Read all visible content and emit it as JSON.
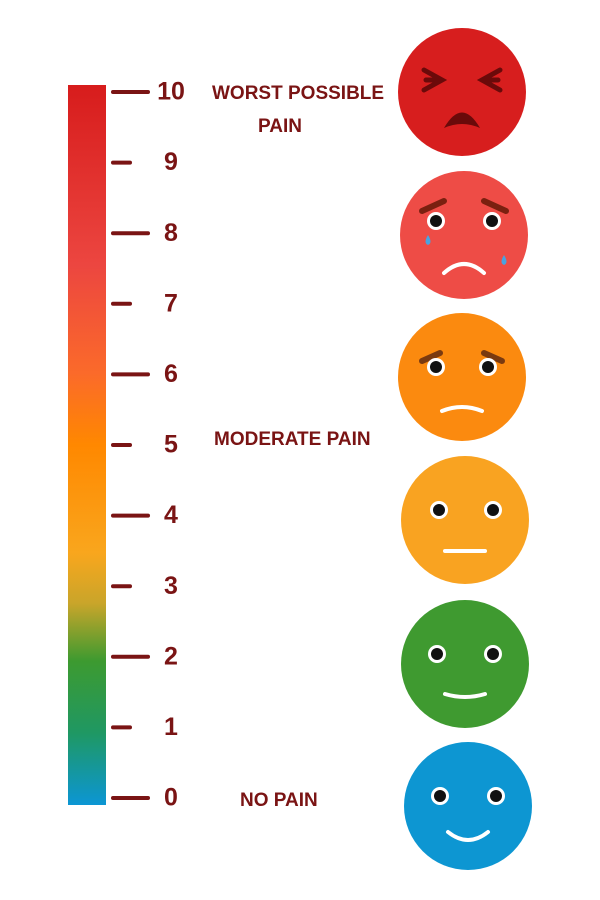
{
  "scale": {
    "ticks": [
      10,
      9,
      8,
      7,
      6,
      5,
      4,
      3,
      2,
      1,
      0
    ]
  },
  "labels": [
    {
      "lines": [
        "WORST POSSIBLE",
        "PAIN"
      ]
    },
    {
      "lines": [
        "MODERATE PAIN"
      ]
    },
    {
      "lines": [
        "NO PAIN"
      ]
    }
  ]
}
